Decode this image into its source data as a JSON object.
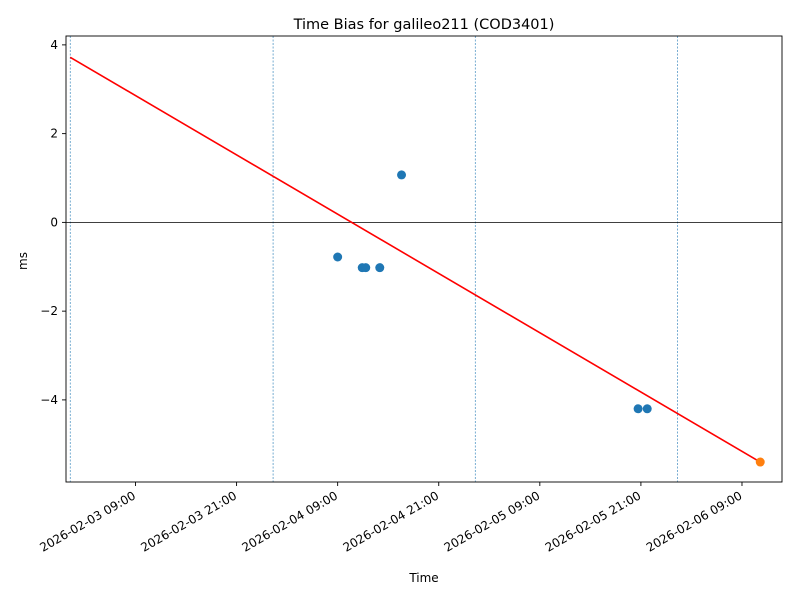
{
  "chart_data": {
    "type": "scatter",
    "title": "Time Bias for galileo211 (COD3401)",
    "xlabel": "Time",
    "ylabel": "ms",
    "xlim": [
      "2026-02-03 00:45",
      "2026-02-06 13:45"
    ],
    "ylim": [
      -5.85,
      4.2
    ],
    "x_ticks": [
      "2026-02-03 09:00",
      "2026-02-03 21:00",
      "2026-02-04 09:00",
      "2026-02-04 21:00",
      "2026-02-05 09:00",
      "2026-02-05 21:00",
      "2026-02-06 09:00"
    ],
    "y_ticks": [
      -4,
      -2,
      0,
      2,
      4
    ],
    "x_tick_labels": [
      "2026-02-03 09:00",
      "2026-02-03 21:00",
      "2026-02-04 09:00",
      "2026-02-04 21:00",
      "2026-02-05 09:00",
      "2026-02-05 21:00",
      "2026-02-06 09:00"
    ],
    "y_tick_labels": [
      "−4",
      "−2",
      "0",
      "2",
      "4"
    ],
    "grid": false,
    "zero_line": 0,
    "vertical_dashed_lines": [
      "2026-02-03 01:15",
      "2026-02-04 01:20",
      "2026-02-05 01:20",
      "2026-02-06 01:20"
    ],
    "series": [
      {
        "type": "scatter",
        "color": "#1f77b4",
        "points": [
          {
            "x": "2026-02-04 09:00",
            "y": -0.78
          },
          {
            "x": "2026-02-04 11:55",
            "y": -1.02
          },
          {
            "x": "2026-02-04 12:20",
            "y": -1.02
          },
          {
            "x": "2026-02-04 14:00",
            "y": -1.02
          },
          {
            "x": "2026-02-04 16:35",
            "y": 1.07
          },
          {
            "x": "2026-02-05 20:40",
            "y": -4.2
          },
          {
            "x": "2026-02-05 21:45",
            "y": -4.2
          }
        ]
      },
      {
        "type": "scatter",
        "color": "#ff7f0e",
        "points": [
          {
            "x": "2026-02-06 11:10",
            "y": -5.4
          }
        ]
      },
      {
        "type": "line",
        "color": "#ff0000",
        "points": [
          {
            "x": "2026-02-03 01:15",
            "y": 3.72
          },
          {
            "x": "2026-02-06 11:10",
            "y": -5.4
          }
        ]
      }
    ]
  }
}
